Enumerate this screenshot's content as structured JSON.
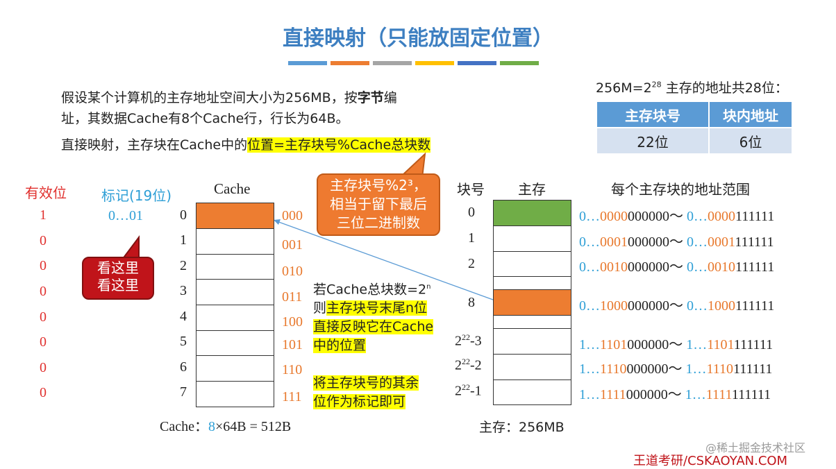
{
  "title": "直接映射（只能放固定位置）",
  "colors": {
    "bar": [
      "#5b9bd5",
      "#ed7d31",
      "#a5a5a5",
      "#ffc000",
      "#4472c4",
      "#70ad47"
    ],
    "accent_orange": "#ed7d31",
    "green": "#70ad47",
    "blue_text": "#2e9fd6"
  },
  "intro": {
    "line1_a": "假设某个计算机的主存地址空间大小为256MB，按",
    "line1_b": "字节",
    "line1_c": "编",
    "line2": "址，其数据Cache有8个Cache行，行长为64B。",
    "line3_a": "直接映射，主存块在Cache中的",
    "line3_b": "位置=主存块号%Cache总块数"
  },
  "addr_info": {
    "label_a": "256M=2",
    "label_sup": "28",
    "label_b": " 主存的地址共28位：",
    "headers": [
      "主存块号",
      "块内地址"
    ],
    "values": [
      "22位",
      "6位"
    ]
  },
  "callout_orange": {
    "l1": "主存块号%2³，",
    "l2": "相当于留下最后",
    "l3": "三位二进制数"
  },
  "callout_red": {
    "l1": "看这里",
    "l2": "看这里"
  },
  "cache": {
    "valid_header": "有效位",
    "tag_header": "标记(19位)",
    "cache_header": "Cache",
    "valid": [
      "1",
      "0",
      "0",
      "0",
      "0",
      "0",
      "0",
      "0"
    ],
    "tag0": "0…01",
    "indices": [
      "0",
      "1",
      "2",
      "3",
      "4",
      "5",
      "6",
      "7"
    ],
    "bin": [
      "000",
      "001",
      "010",
      "011",
      "100",
      "101",
      "110",
      "111"
    ],
    "footer_a": "Cache：",
    "footer_b": "8",
    "footer_c": "×64B = 512B"
  },
  "note": {
    "l1a": "若Cache总块数=2",
    "l1sup": "n",
    "l2a": "则",
    "l2b": "主存块号末尾n位",
    "l3": "直接反映它在Cache",
    "l4": "中的位置",
    "l5": "将主存块号的其余",
    "l6": "位作为标记即可"
  },
  "memory": {
    "block_header": "块号",
    "mem_header": "主存",
    "range_header": "每个主存块的地址范围",
    "blocks": [
      {
        "no": "0",
        "sup": ""
      },
      {
        "no": "1",
        "sup": ""
      },
      {
        "no": "2",
        "sup": ""
      },
      {
        "no": "8",
        "sup": ""
      },
      {
        "no_a": "2",
        "sup": "22",
        "no_b": "-3"
      },
      {
        "no_a": "2",
        "sup": "22",
        "no_b": "-2"
      },
      {
        "no_a": "2",
        "sup": "22",
        "no_b": "-1"
      }
    ],
    "ranges": [
      {
        "p1": "0…",
        "o1": "0000",
        "b1": "000000～ ",
        "p2": "0…",
        "o2": "0000",
        "b2": "111111"
      },
      {
        "p1": "0…",
        "o1": "0001",
        "b1": "000000～ ",
        "p2": "0…",
        "o2": "0001",
        "b2": "111111"
      },
      {
        "p1": "0…",
        "o1": "0010",
        "b1": "000000～ ",
        "p2": "0…",
        "o2": "0010",
        "b2": "111111"
      },
      {
        "p1": "0…",
        "o1": "1000",
        "b1": "000000～ ",
        "p2": "0…",
        "o2": "1000",
        "b2": "111111"
      },
      {
        "p1": "1…",
        "o1": "1101",
        "b1": "000000～ ",
        "p2": "1…",
        "o2": "1101",
        "b2": "111111"
      },
      {
        "p1": "1…",
        "o1": "1110",
        "b1": "000000～ ",
        "p2": "1…",
        "o2": "1110",
        "b2": "111111"
      },
      {
        "p1": "1…",
        "o1": "1111",
        "b1": "000000～ ",
        "p2": "1…",
        "o2": "1111",
        "b2": "111111"
      }
    ],
    "footer": "主存：256MB"
  },
  "watermark": "@稀土掘金技术社区",
  "brand": "王道考研/CSKAOYAN.COM"
}
